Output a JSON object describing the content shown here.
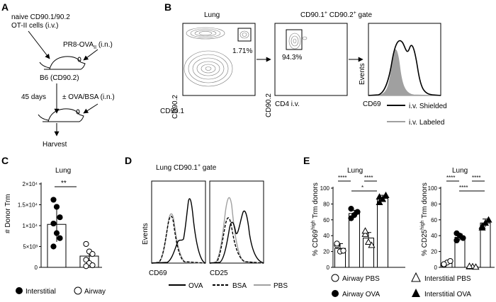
{
  "panels": {
    "A": {
      "letter": "A",
      "naive_line1": "naive CD90.1/90.2",
      "naive_line2": "OT-II cells (i.v.)",
      "infection": "PR8-OVA",
      "infection_sub": "II",
      "infection_route": " (i.n.)",
      "host": "B6 (CD90.2)",
      "days": "45 days",
      "challenge": "± OVA/BSA (i.n.)",
      "harvest": "Harvest"
    },
    "B": {
      "letter": "B",
      "title_lung": "Lung",
      "title_gate": "CD90.1",
      "title_gate_sup1": "+",
      "title_gate_mid": " CD90.2",
      "title_gate_sup2": "+",
      "title_gate_end": " gate",
      "plot1_y": "CD90.2",
      "plot1_x": "CD90.1",
      "plot1_pct": "1.71%",
      "plot2_y": "CD90.2",
      "plot2_x": "CD4 i.v.",
      "plot2_pct": "94.3%",
      "plot3_y": "Events",
      "plot3_x": "CD69",
      "legend_shielded": "i.v. Shielded",
      "legend_labeled": "i.v. Labeled",
      "color_shielded": "#000000",
      "color_labeled": "#a0a0a0"
    },
    "C": {
      "letter": "C",
      "title": "Lung",
      "ylabel": "# Donor Trm",
      "yticks": [
        "0",
        "5×10³",
        "1×10⁴",
        "1.5×10⁴",
        "2×10⁴"
      ],
      "signif": "**",
      "legend_interstitial": "Interstitial",
      "legend_airway": "Airway"
    },
    "D": {
      "letter": "D",
      "title": "Lung CD90.1",
      "title_sup": "+",
      "title_end": " gate",
      "ylabel": "Events",
      "x1": "CD69",
      "x2": "CD25",
      "legend_ova": "OVA",
      "legend_bsa": "BSA",
      "legend_pbs": "PBS"
    },
    "E": {
      "letter": "E",
      "title1": "Lung",
      "title2": "Lung",
      "ylabel1_a": "% CD69",
      "ylabel1_sup": "high",
      "ylabel1_b": " Trm donors",
      "ylabel2_a": "% CD25",
      "ylabel2_sup": "high",
      "ylabel2_b": " Trm donors",
      "yticks": [
        "0",
        "20",
        "40",
        "60",
        "80",
        "100"
      ],
      "sig1_a": "****",
      "sig1_b": "****",
      "sig1_c": "*",
      "sig2_a": "****",
      "sig2_b": "****",
      "sig2_c": "****",
      "legend_airway_pbs": "Airway PBS",
      "legend_interstitial_pbs": "Interstitial PBS",
      "legend_airway_ova": "Airway OVA",
      "legend_interstitial_ova": "Interstitial OVA"
    }
  },
  "chart_data": [
    {
      "type": "bar",
      "title": "Lung",
      "ylabel": "# Donor Trm",
      "ylim": [
        0,
        20000
      ],
      "categories": [
        "Interstitial",
        "Airway"
      ],
      "values": [
        10300,
        2700
      ],
      "errors": [
        4200,
        1200
      ],
      "points": [
        [
          16200,
          14500,
          12000,
          10500,
          8200,
          7000,
          5000
        ],
        [
          5600,
          3800,
          3200,
          1800,
          1000,
          500,
          300
        ]
      ]
    },
    {
      "type": "bar",
      "title": "Lung",
      "ylabel": "% CD69high Trm donors",
      "ylim": [
        0,
        100
      ],
      "categories": [
        "Airway PBS",
        "Airway OVA",
        "Interstitial PBS",
        "Interstitial OVA"
      ],
      "values": [
        24,
        68,
        37,
        87
      ],
      "errors": [
        6,
        4,
        7,
        4
      ],
      "points": [
        [
          28,
          20,
          21,
          30
        ],
        [
          62,
          66,
          70,
          74
        ],
        [
          42,
          32,
          28,
          46
        ],
        [
          82,
          86,
          91,
          89
        ]
      ]
    },
    {
      "type": "bar",
      "title": "Lung",
      "ylabel": "% CD25high Trm donors",
      "ylim": [
        0,
        100
      ],
      "categories": [
        "Airway PBS",
        "Airway OVA",
        "Interstitial PBS",
        "Interstitial OVA"
      ],
      "values": [
        5,
        38,
        1,
        56
      ],
      "errors": [
        2,
        4,
        0.5,
        5
      ],
      "points": [
        [
          3,
          6,
          8,
          4
        ],
        [
          34,
          40,
          37,
          43
        ],
        [
          1,
          1,
          0.5,
          1.5
        ],
        [
          50,
          56,
          60,
          52
        ]
      ]
    }
  ]
}
